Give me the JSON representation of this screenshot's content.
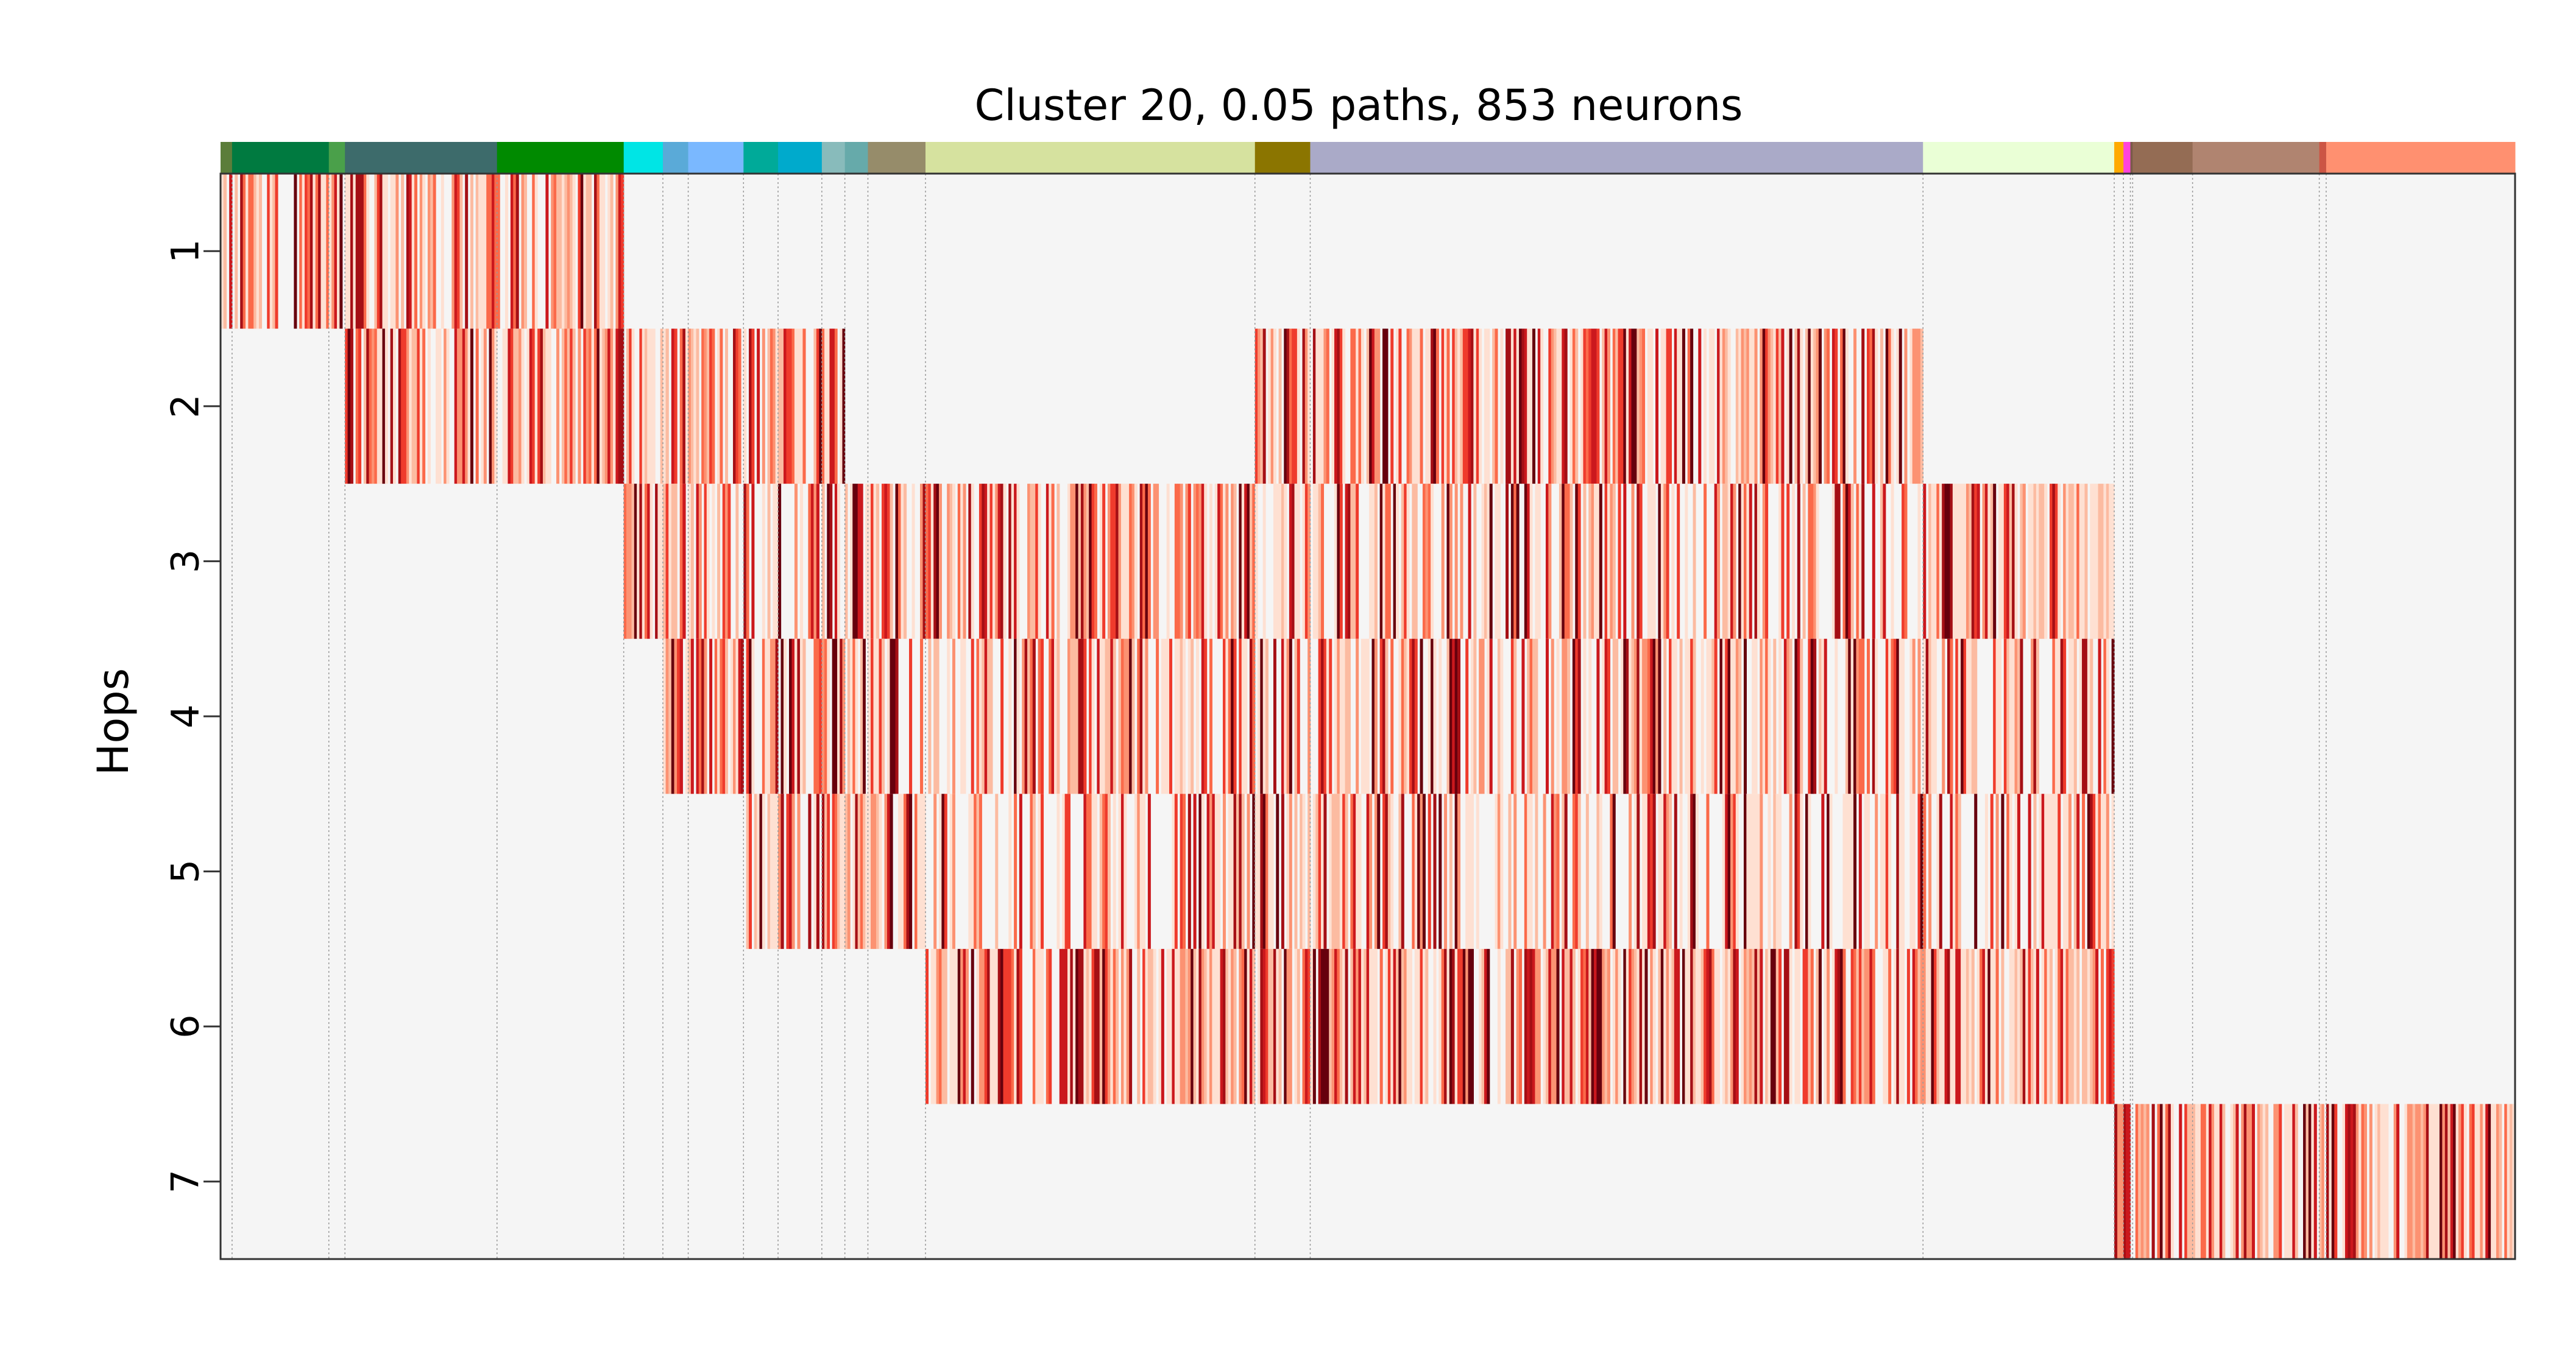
{
  "chart_data": {
    "type": "heatmap",
    "title": "Cluster 20, 0.05 paths, 853 neurons",
    "ylabel": "Hops",
    "xlabel": "",
    "y_tick_labels": [
      "1",
      "2",
      "3",
      "4",
      "5",
      "6",
      "7"
    ],
    "colormap": [
      "#fee0d2",
      "#fcbba1",
      "#fc9272",
      "#fb6a4a",
      "#ef3b2c",
      "#cb181d",
      "#a50f15",
      "#67000d"
    ],
    "background_color": "#f5f5f5",
    "n_neurons": 853,
    "grid": "vertical dotted dividers between neuron groups",
    "group_colors": [
      {
        "color": "#5b7d3a",
        "width": 0.005,
        "hops": [
          1
        ]
      },
      {
        "color": "#007a40",
        "width": 0.042,
        "hops": [
          1
        ]
      },
      {
        "color": "#4aa04a",
        "width": 0.007,
        "hops": [
          1
        ]
      },
      {
        "color": "#3d6b6b",
        "width": 0.066,
        "hops": [
          1,
          2
        ]
      },
      {
        "color": "#008a00",
        "width": 0.055,
        "hops": [
          1,
          2
        ]
      },
      {
        "color": "#00e5e5",
        "width": 0.017,
        "hops": [
          2,
          3
        ]
      },
      {
        "color": "#5aaad8",
        "width": 0.011,
        "hops": [
          2,
          3,
          4
        ]
      },
      {
        "color": "#7ab8ff",
        "width": 0.024,
        "hops": [
          2,
          3,
          4
        ]
      },
      {
        "color": "#00aa99",
        "width": 0.015,
        "hops": [
          2,
          3,
          4,
          5
        ]
      },
      {
        "color": "#00aacc",
        "width": 0.019,
        "hops": [
          2,
          3,
          4,
          5
        ]
      },
      {
        "color": "#88bbbb",
        "width": 0.01,
        "hops": [
          2,
          3,
          4,
          5
        ]
      },
      {
        "color": "#66aaaa",
        "width": 0.01,
        "hops": [
          3,
          4,
          5
        ]
      },
      {
        "color": "#968c6a",
        "width": 0.025,
        "hops": [
          3,
          4,
          5
        ]
      },
      {
        "color": "#d6e29f",
        "width": 0.143,
        "hops": [
          3,
          4,
          5,
          6
        ]
      },
      {
        "color": "#8b7500",
        "width": 0.024,
        "hops": [
          2,
          3,
          4,
          5,
          6
        ]
      },
      {
        "color": "#aaaac8",
        "width": 0.266,
        "hops": [
          2,
          3,
          4,
          5,
          6
        ]
      },
      {
        "color": "#eaffd6",
        "width": 0.083,
        "hops": [
          3,
          4,
          5,
          6
        ]
      },
      {
        "color": "#ffaa00",
        "width": 0.004,
        "hops": [
          7
        ]
      },
      {
        "color": "#ff44dd",
        "width": 0.003,
        "hops": [
          7
        ]
      },
      {
        "color": "#7a5a4a",
        "width": 0.001,
        "hops": [
          7
        ]
      },
      {
        "color": "#946c54",
        "width": 0.026,
        "hops": [
          7
        ]
      },
      {
        "color": "#b08470",
        "width": 0.055,
        "hops": [
          7
        ]
      },
      {
        "color": "#cc5544",
        "width": 0.003,
        "hops": [
          7
        ]
      },
      {
        "color": "#ff9070",
        "width": 0.082,
        "hops": [
          7
        ]
      }
    ]
  }
}
